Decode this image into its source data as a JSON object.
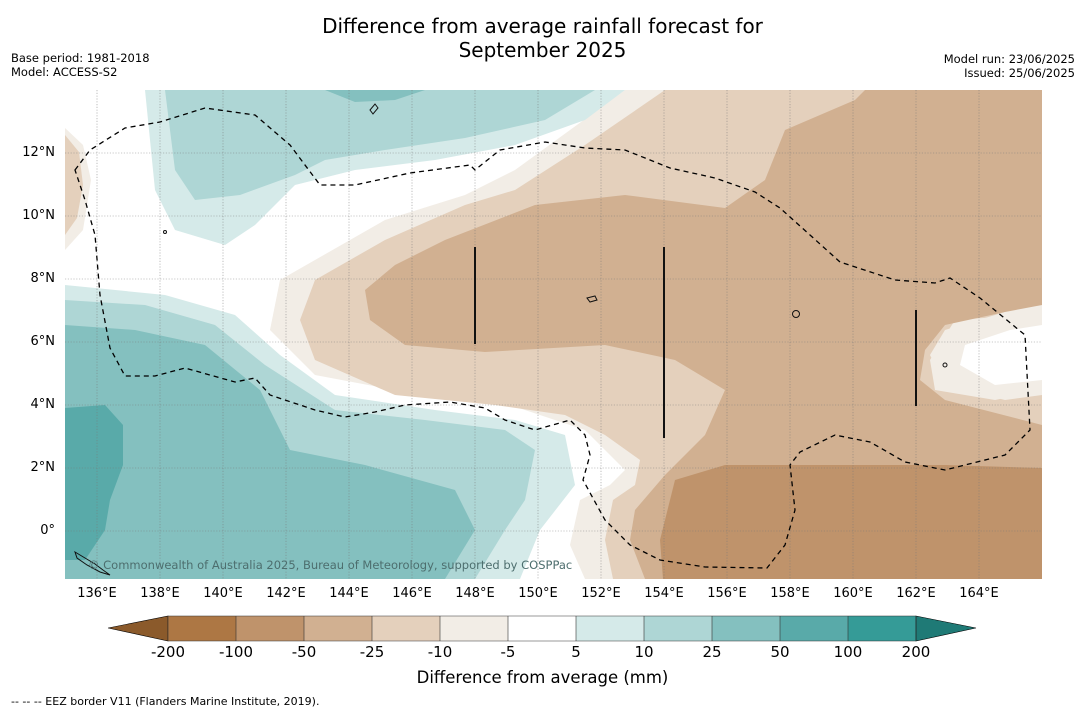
{
  "title_line1": "Difference from average rainfall forecast for",
  "title_line2": "September 2025",
  "meta_left": {
    "base_period": "Base period: 1981-2018",
    "model": "Model: ACCESS-S2"
  },
  "meta_right": {
    "model_run": "Model run: 23/06/2025",
    "issued": "Issued: 25/06/2025"
  },
  "map": {
    "lon_ticks": [
      "136°E",
      "138°E",
      "140°E",
      "142°E",
      "144°E",
      "146°E",
      "148°E",
      "150°E",
      "152°E",
      "154°E",
      "156°E",
      "158°E",
      "160°E",
      "162°E",
      "164°E"
    ],
    "lat_ticks": [
      "12°N",
      "10°N",
      "8°N",
      "6°N",
      "4°N",
      "2°N",
      "0°"
    ],
    "lon_range": [
      135,
      166
    ],
    "lat_range": [
      -1.5,
      14
    ],
    "copyright": "© Commonwealth of Australia 2025, Bureau of Meteorology, supported by COSPPac",
    "colors": {
      "lt_-200": "#8b5a2b",
      "-200_-100": "#ad7744",
      "-100_-50": "#bf936b",
      "-50_-25": "#d1b091",
      "-25_-10": "#e4d0bc",
      "-10_-5": "#f2ede6",
      "-5_5": "#ffffff",
      "5_10": "#d5eae9",
      "10_25": "#aed6d5",
      "25_50": "#84c0bf",
      "50_100": "#59aaa9",
      "100_200": "#359b97",
      "gt_200": "#1f7a76"
    }
  },
  "colorbar": {
    "ticks": [
      "-200",
      "-100",
      "-50",
      "-25",
      "-10",
      "-5",
      "5",
      "10",
      "25",
      "50",
      "100",
      "200"
    ],
    "label": "Difference from average (mm)"
  },
  "footnote": "--  --  -- EEZ border V11 (Flanders Marine Institute, 2019)."
}
